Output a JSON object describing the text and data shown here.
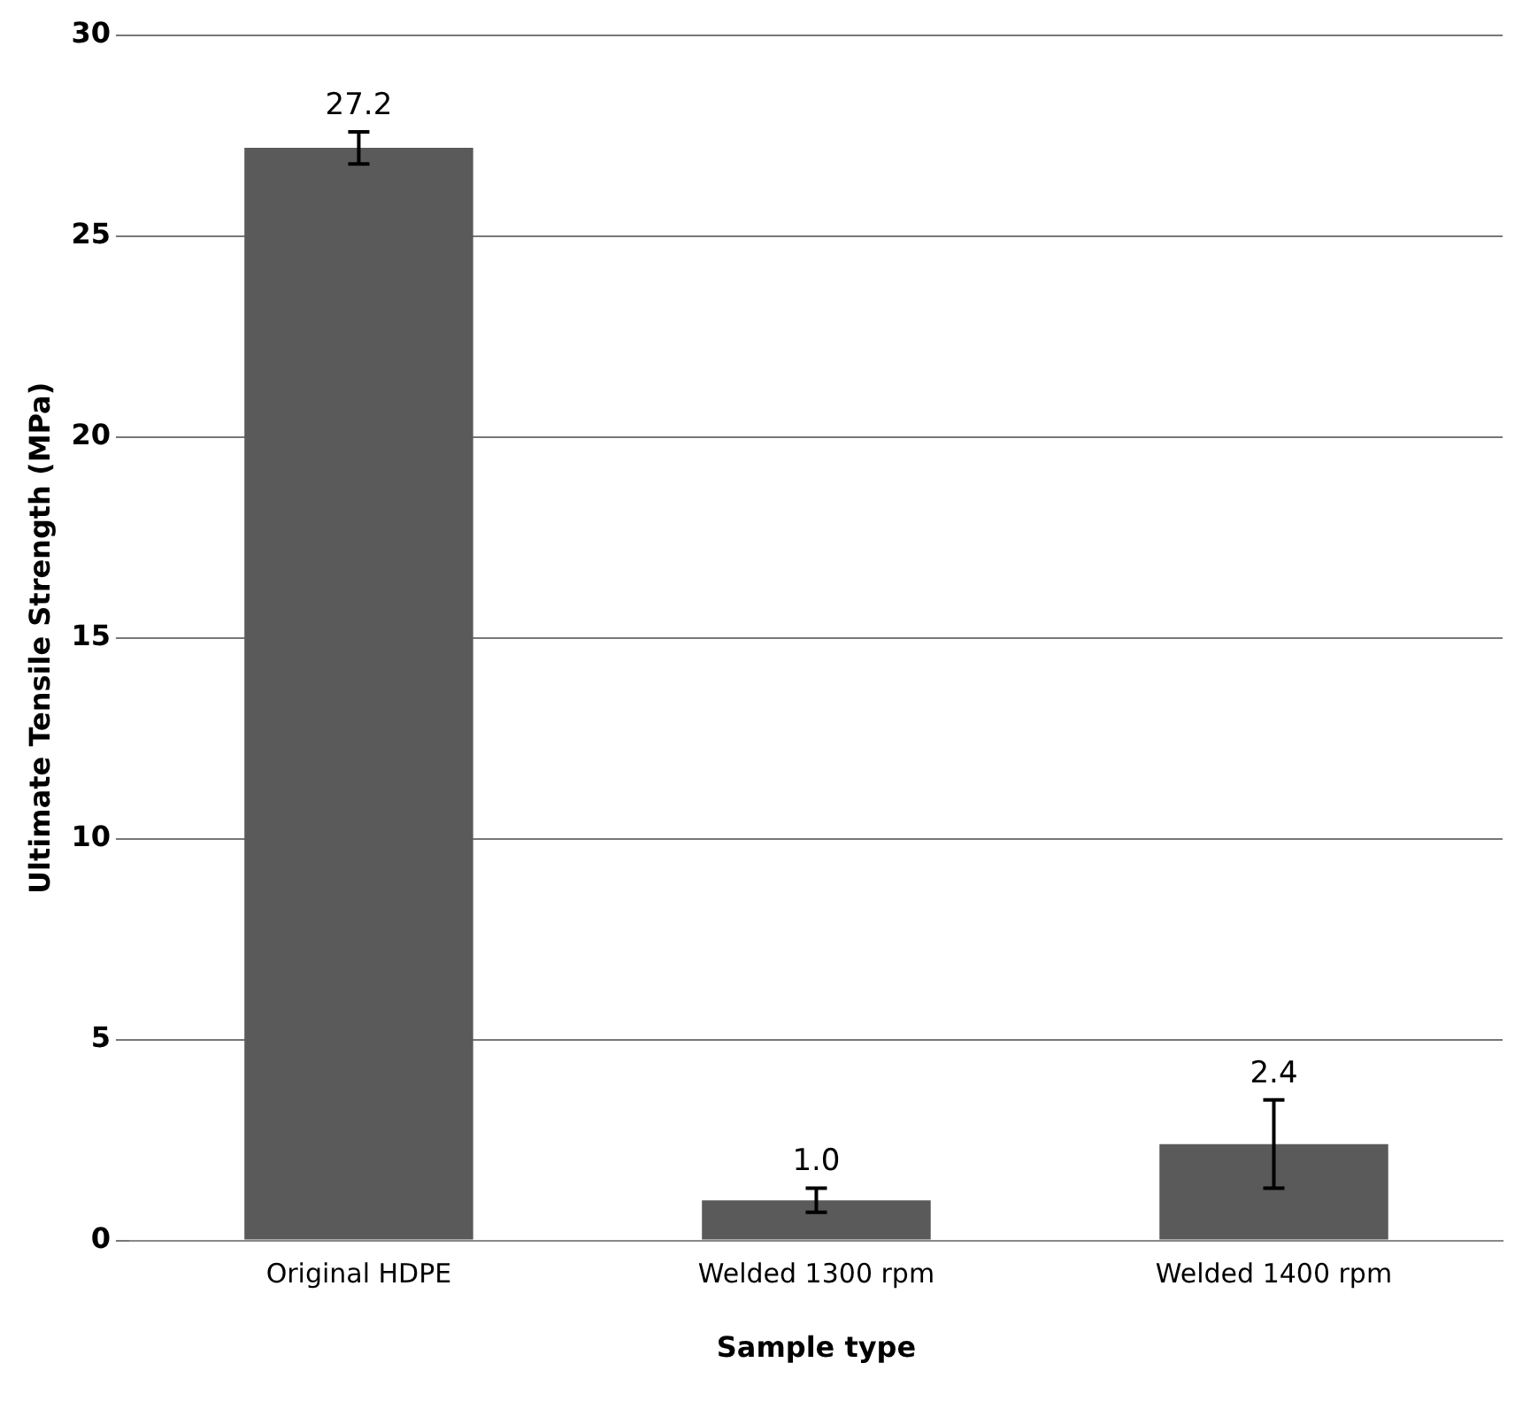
{
  "chart_data": {
    "type": "bar",
    "xlabel": "Sample type",
    "ylabel": "Ultimate Tensile Strength (MPa)",
    "categories": [
      "Original HDPE",
      "Welded 1300 rpm",
      "Welded 1400 rpm"
    ],
    "values": [
      27.2,
      1.0,
      2.4
    ],
    "errors": [
      0.4,
      0.3,
      1.1
    ],
    "color": "#5a5a5a",
    "ylim": [
      0,
      30
    ],
    "yticks": [
      0,
      5,
      10,
      15,
      20,
      25,
      30
    ],
    "grid": "y",
    "value_labels": [
      "27.2",
      "1.0",
      "2.4"
    ],
    "legend": false
  }
}
